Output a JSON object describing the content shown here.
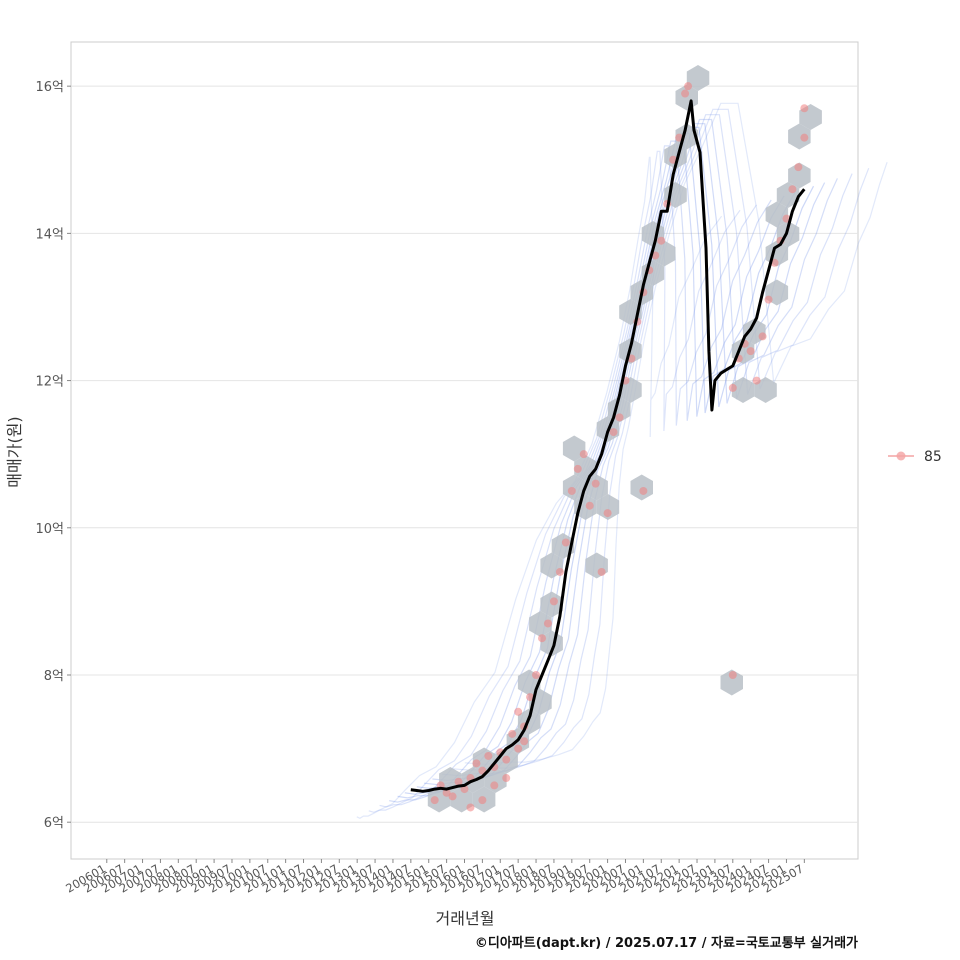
{
  "chart_data": {
    "type": "line",
    "title": "",
    "xlabel": "거래년월",
    "ylabel": "매매가(원)",
    "ylim": [
      5.5,
      16.6
    ],
    "yticks": [
      {
        "value": 6,
        "label": "6억"
      },
      {
        "value": 8,
        "label": "8억"
      },
      {
        "value": 10,
        "label": "10억"
      },
      {
        "value": 12,
        "label": "12억"
      },
      {
        "value": 14,
        "label": "14억"
      },
      {
        "value": 16,
        "label": "16억"
      }
    ],
    "xlim": [
      "2005-01",
      "2027-01"
    ],
    "xticks": [
      "200601",
      "200607",
      "200701",
      "200707",
      "200801",
      "200807",
      "200901",
      "200907",
      "201001",
      "201007",
      "201101",
      "201107",
      "201201",
      "201207",
      "201301",
      "201307",
      "201401",
      "201407",
      "201501",
      "201507",
      "201601",
      "201607",
      "201701",
      "201707",
      "201801",
      "201807",
      "201901",
      "201907",
      "202001",
      "202007",
      "202101",
      "202107",
      "202201",
      "202207",
      "202301",
      "202307",
      "202401",
      "202407",
      "202501",
      "202507"
    ],
    "grid": true,
    "legend": {
      "position": "right",
      "entries": [
        {
          "label": "85",
          "color": "#f4a3a3"
        }
      ]
    },
    "colors": {
      "trend": "#000000",
      "points": "#f08080",
      "hexbin": "#b8bfc7",
      "contour": "#6f8fe8"
    },
    "series": [
      {
        "type": "line",
        "points": [
          [
            "2014-07",
            6.44
          ],
          [
            "2014-09",
            6.43
          ],
          [
            "2014-11",
            6.42
          ],
          [
            "2015-01",
            6.43
          ],
          [
            "2015-03",
            6.45
          ],
          [
            "2015-05",
            6.46
          ],
          [
            "2015-07",
            6.45
          ],
          [
            "2015-09",
            6.47
          ],
          [
            "2015-11",
            6.49
          ],
          [
            "2016-01",
            6.5
          ],
          [
            "2016-03",
            6.55
          ],
          [
            "2016-05",
            6.58
          ],
          [
            "2016-07",
            6.62
          ],
          [
            "2016-09",
            6.7
          ],
          [
            "2016-11",
            6.8
          ],
          [
            "2017-01",
            6.9
          ],
          [
            "2017-03",
            7.0
          ],
          [
            "2017-05",
            7.05
          ],
          [
            "2017-07",
            7.12
          ],
          [
            "2017-09",
            7.25
          ],
          [
            "2017-11",
            7.45
          ],
          [
            "2018-01",
            7.8
          ],
          [
            "2018-03",
            8.0
          ],
          [
            "2018-05",
            8.2
          ],
          [
            "2018-07",
            8.4
          ],
          [
            "2018-09",
            8.8
          ],
          [
            "2018-11",
            9.4
          ],
          [
            "2019-01",
            9.8
          ],
          [
            "2019-03",
            10.2
          ],
          [
            "2019-05",
            10.5
          ],
          [
            "2019-07",
            10.7
          ],
          [
            "2019-09",
            10.8
          ],
          [
            "2019-11",
            11.0
          ],
          [
            "2020-01",
            11.3
          ],
          [
            "2020-03",
            11.5
          ],
          [
            "2020-05",
            11.8
          ],
          [
            "2020-07",
            12.2
          ],
          [
            "2020-09",
            12.5
          ],
          [
            "2020-11",
            12.9
          ],
          [
            "2021-01",
            13.3
          ],
          [
            "2021-03",
            13.6
          ],
          [
            "2021-05",
            13.9
          ],
          [
            "2021-07",
            14.3
          ],
          [
            "2021-09",
            14.3
          ],
          [
            "2021-11",
            14.8
          ],
          [
            "2022-01",
            15.1
          ],
          [
            "2022-03",
            15.4
          ],
          [
            "2022-05",
            15.8
          ],
          [
            "2022-06",
            15.4
          ],
          [
            "2022-08",
            15.1
          ],
          [
            "2022-10",
            13.8
          ],
          [
            "2022-11",
            12.4
          ],
          [
            "2022-12",
            11.6
          ],
          [
            "2023-01",
            12.0
          ],
          [
            "2023-03",
            12.1
          ],
          [
            "2023-05",
            12.15
          ],
          [
            "2023-07",
            12.2
          ],
          [
            "2023-09",
            12.4
          ],
          [
            "2023-11",
            12.6
          ],
          [
            "2024-01",
            12.7
          ],
          [
            "2024-03",
            12.85
          ],
          [
            "2024-05",
            13.2
          ],
          [
            "2024-07",
            13.5
          ],
          [
            "2024-09",
            13.8
          ],
          [
            "2024-11",
            13.85
          ],
          [
            "2025-01",
            14.0
          ],
          [
            "2025-03",
            14.3
          ],
          [
            "2025-05",
            14.5
          ],
          [
            "2025-07",
            14.6
          ]
        ]
      },
      {
        "type": "scatter",
        "name": "85",
        "points": [
          [
            "2015-03",
            6.3
          ],
          [
            "2015-05",
            6.5
          ],
          [
            "2015-07",
            6.4
          ],
          [
            "2015-09",
            6.35
          ],
          [
            "2015-11",
            6.55
          ],
          [
            "2016-01",
            6.45
          ],
          [
            "2016-03",
            6.6
          ],
          [
            "2016-03",
            6.2
          ],
          [
            "2016-05",
            6.8
          ],
          [
            "2016-07",
            6.7
          ],
          [
            "2016-07",
            6.3
          ],
          [
            "2016-09",
            6.9
          ],
          [
            "2016-11",
            6.5
          ],
          [
            "2016-11",
            6.75
          ],
          [
            "2017-01",
            6.95
          ],
          [
            "2017-03",
            6.85
          ],
          [
            "2017-03",
            6.6
          ],
          [
            "2017-05",
            7.2
          ],
          [
            "2017-07",
            7.0
          ],
          [
            "2017-07",
            7.5
          ],
          [
            "2017-09",
            7.1
          ],
          [
            "2017-09",
            7.3
          ],
          [
            "2017-11",
            7.7
          ],
          [
            "2018-01",
            8.0
          ],
          [
            "2018-03",
            8.5
          ],
          [
            "2018-05",
            8.7
          ],
          [
            "2018-07",
            9.0
          ],
          [
            "2018-09",
            9.4
          ],
          [
            "2018-11",
            9.8
          ],
          [
            "2019-01",
            10.5
          ],
          [
            "2019-03",
            10.8
          ],
          [
            "2019-05",
            11.0
          ],
          [
            "2019-07",
            10.3
          ],
          [
            "2019-09",
            10.6
          ],
          [
            "2019-11",
            9.4
          ],
          [
            "2020-01",
            10.2
          ],
          [
            "2020-03",
            11.3
          ],
          [
            "2020-05",
            11.5
          ],
          [
            "2020-07",
            12.0
          ],
          [
            "2020-09",
            12.3
          ],
          [
            "2020-11",
            12.8
          ],
          [
            "2021-01",
            13.2
          ],
          [
            "2021-03",
            13.5
          ],
          [
            "2021-05",
            13.7
          ],
          [
            "2021-07",
            13.9
          ],
          [
            "2021-09",
            14.4
          ],
          [
            "2021-11",
            15.0
          ],
          [
            "2022-01",
            15.3
          ],
          [
            "2022-03",
            15.9
          ],
          [
            "2022-04",
            16.0
          ],
          [
            "2021-01",
            10.5
          ],
          [
            "2023-07",
            11.9
          ],
          [
            "2023-09",
            12.3
          ],
          [
            "2023-11",
            12.5
          ],
          [
            "2024-01",
            12.4
          ],
          [
            "2024-03",
            12.0
          ],
          [
            "2024-05",
            12.6
          ],
          [
            "2024-07",
            13.1
          ],
          [
            "2024-09",
            13.6
          ],
          [
            "2024-11",
            13.9
          ],
          [
            "2025-01",
            14.2
          ],
          [
            "2025-03",
            14.6
          ],
          [
            "2025-05",
            14.9
          ],
          [
            "2025-07",
            15.3
          ],
          [
            "2025-07",
            15.7
          ],
          [
            "2023-07",
            8.0
          ]
        ]
      }
    ]
  },
  "caption": "©디아파트(dapt.kr) / 2025.07.17 / 자료=국토교통부 실거래가"
}
